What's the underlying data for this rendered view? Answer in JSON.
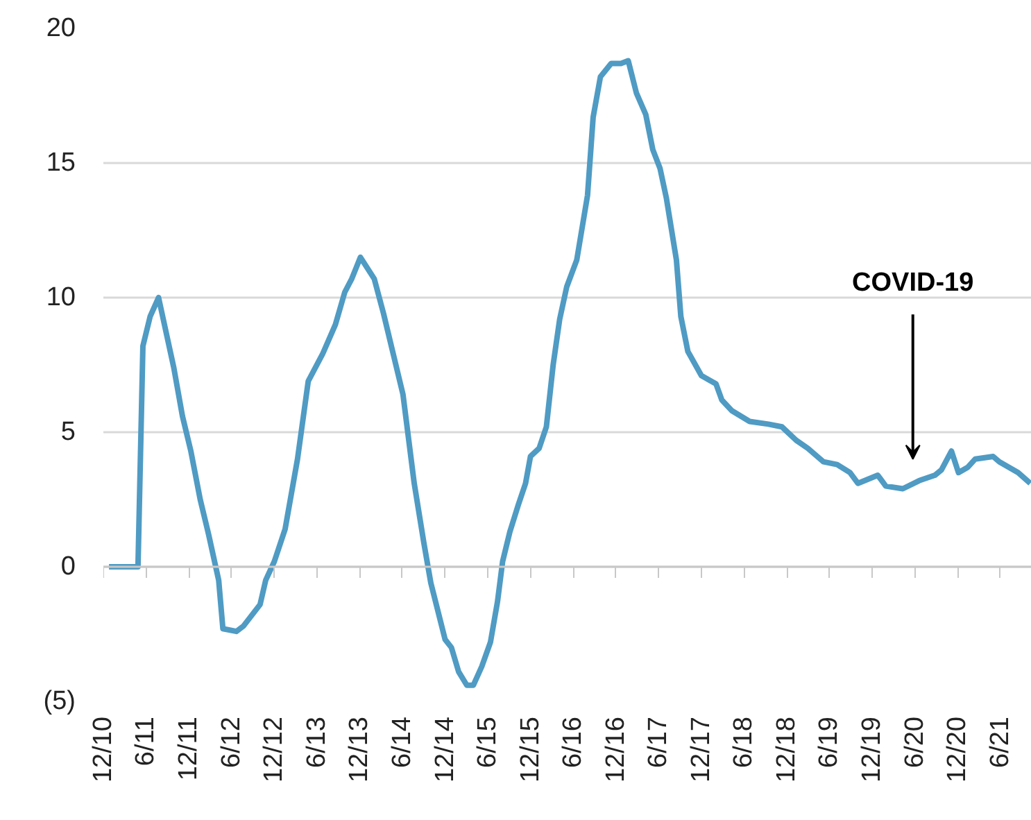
{
  "chart_data": {
    "type": "line",
    "x": [
      "2010-12-25",
      "2011-04-28",
      "2011-05-19",
      "2011-06-19",
      "2011-07-25",
      "2011-09-28",
      "2011-11-04",
      "2011-12-10",
      "2012-01-19",
      "2012-02-24",
      "2012-04-07",
      "2012-04-25",
      "2012-06-22",
      "2012-07-22",
      "2012-10-01",
      "2012-10-25",
      "2012-12-01",
      "2013-01-16",
      "2013-03-10",
      "2013-04-25",
      "2013-06-25",
      "2013-08-19",
      "2013-09-28",
      "2013-10-28",
      "2013-12-04",
      "2014-02-01",
      "2014-03-13",
      "2014-06-04",
      "2014-07-22",
      "2014-09-01",
      "2014-10-01",
      "2014-12-01",
      "2014-12-28",
      "2015-01-28",
      "2015-03-04",
      "2015-04-01",
      "2015-05-07",
      "2015-06-13",
      "2015-07-13",
      "2015-08-04",
      "2015-09-04",
      "2015-10-10",
      "2015-11-10",
      "2015-12-01",
      "2016-01-07",
      "2016-02-07",
      "2016-03-07",
      "2016-04-04",
      "2016-05-04",
      "2016-06-16",
      "2016-08-01",
      "2016-08-25",
      "2016-09-25",
      "2016-11-10",
      "2016-12-22",
      "2017-01-22",
      "2017-02-26",
      "2017-04-07",
      "2017-05-07",
      "2017-06-07",
      "2017-07-04",
      "2017-08-16",
      "2017-09-04",
      "2017-10-04",
      "2017-12-01",
      "2018-02-01",
      "2018-02-26",
      "2018-04-10",
      "2018-06-25",
      "2018-09-13",
      "2018-11-10",
      "2019-01-10",
      "2019-03-01",
      "2019-05-07",
      "2019-07-04",
      "2019-08-28",
      "2019-10-01",
      "2019-12-25",
      "2020-01-28",
      "2020-04-10",
      "2020-06-19",
      "2020-08-25",
      "2020-09-22",
      "2020-11-04",
      "2020-12-04",
      "2021-01-13",
      "2021-02-13",
      "2021-05-01",
      "2021-05-28",
      "2021-08-16",
      "2021-10-07"
    ],
    "series": [
      {
        "color": "#4f9bc4",
        "values": [
          0,
          0,
          8.2,
          9.3,
          10.0,
          7.4,
          5.6,
          4.3,
          2.5,
          1.2,
          -0.5,
          -2.3,
          -2.4,
          -2.2,
          -1.4,
          -0.5,
          0.2,
          1.4,
          4.0,
          6.9,
          7.9,
          9.0,
          10.2,
          10.7,
          11.5,
          10.7,
          9.4,
          6.4,
          3.1,
          0.9,
          -0.6,
          -2.7,
          -3.0,
          -3.9,
          -4.4,
          -4.4,
          -3.7,
          -2.8,
          -1.3,
          0.2,
          1.3,
          2.3,
          3.1,
          4.1,
          4.4,
          5.2,
          7.5,
          9.2,
          10.4,
          11.4,
          13.8,
          16.7,
          18.2,
          18.7,
          18.7,
          18.8,
          17.6,
          16.8,
          15.5,
          14.8,
          13.7,
          11.4,
          9.3,
          8.0,
          7.1,
          6.8,
          6.2,
          5.8,
          5.4,
          5.3,
          5.2,
          4.7,
          4.4,
          3.9,
          3.8,
          3.5,
          3.1,
          3.4,
          3.0,
          2.9,
          3.2,
          3.4,
          3.6,
          4.3,
          3.5,
          3.7,
          4.0,
          4.1,
          3.9,
          3.5,
          3.1
        ]
      }
    ],
    "xlim": [
      "2010-12-01",
      "2021-10-13"
    ],
    "xticks": [
      {
        "value": "2010-12",
        "label": "12/10"
      },
      {
        "value": "2011-06",
        "label": "6/11"
      },
      {
        "value": "2011-12",
        "label": "12/11"
      },
      {
        "value": "2012-06",
        "label": "6/12"
      },
      {
        "value": "2012-12",
        "label": "12/12"
      },
      {
        "value": "2013-06",
        "label": "6/13"
      },
      {
        "value": "2013-12",
        "label": "12/13"
      },
      {
        "value": "2014-06",
        "label": "6/14"
      },
      {
        "value": "2014-12",
        "label": "12/14"
      },
      {
        "value": "2015-06",
        "label": "6/15"
      },
      {
        "value": "2015-12",
        "label": "12/15"
      },
      {
        "value": "2016-06",
        "label": "6/16"
      },
      {
        "value": "2016-12",
        "label": "12/16"
      },
      {
        "value": "2017-06",
        "label": "6/17"
      },
      {
        "value": "2017-12",
        "label": "12/17"
      },
      {
        "value": "2018-06",
        "label": "6/18"
      },
      {
        "value": "2018-12",
        "label": "12/18"
      },
      {
        "value": "2019-06",
        "label": "6/19"
      },
      {
        "value": "2019-12",
        "label": "12/19"
      },
      {
        "value": "2020-06",
        "label": "6/20"
      },
      {
        "value": "2020-12",
        "label": "12/20"
      },
      {
        "value": "2021-06",
        "label": "6/21"
      }
    ],
    "ylim": [
      -5,
      20
    ],
    "yticks": [
      {
        "value": -5,
        "label": "(5)"
      },
      0,
      5,
      10,
      15,
      20
    ],
    "grid": "y",
    "line_style": "solid",
    "annotations": [
      "COVID-19"
    ]
  }
}
